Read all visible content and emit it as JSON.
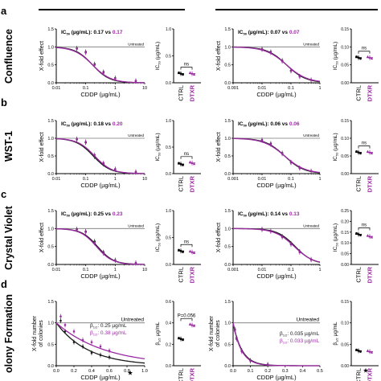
{
  "figure": {
    "row_labels": [
      "Confluence",
      "WST-1",
      "Crystal Violet",
      "olony Formation"
    ],
    "panel_letters": [
      "a",
      "b",
      "c",
      "d"
    ],
    "colors": {
      "ctrl": "#1a1a1a",
      "dtxr": "#9b2aa3",
      "ref_line": "#777777",
      "axis": "#000000"
    },
    "icons": [
      "star-icon",
      "star-icon"
    ]
  },
  "chart_data": [
    {
      "type": "line",
      "id": "a-left",
      "row": "a",
      "xlabel": "CDDP (µg/mL)",
      "ylabel": "X-fold effect",
      "xscale": "log",
      "xlim": [
        0.01,
        10
      ],
      "ylim": [
        0,
        1.5
      ],
      "xticks": [
        "0.01",
        "0.1",
        "1",
        "10"
      ],
      "yticks": [
        "0.0",
        "0.5",
        "1.0",
        "1.5"
      ],
      "ref_label": "Untreated",
      "ref_y": 1.0,
      "ic_text": {
        "prefix": "IC",
        "sub": "50",
        "rest": " (µg/mL): 0.17 vs ",
        "b": "0.17"
      },
      "series": [
        {
          "key": "ctrl",
          "ic50": 0.17,
          "hill": 1.5,
          "points": [
            [
              0.05,
              0.96
            ],
            [
              0.1,
              0.86
            ],
            [
              0.2,
              0.52
            ],
            [
              0.4,
              0.3
            ],
            [
              1,
              0.13
            ],
            [
              5,
              0.05
            ]
          ]
        },
        {
          "key": "dtxr",
          "ic50": 0.17,
          "hill": 1.4,
          "points": [
            [
              0.05,
              0.95
            ],
            [
              0.1,
              0.84
            ],
            [
              0.2,
              0.5
            ],
            [
              0.4,
              0.28
            ],
            [
              1,
              0.12
            ],
            [
              5,
              0.05
            ]
          ]
        }
      ]
    },
    {
      "type": "scatter",
      "id": "a-left-ic",
      "row": "a",
      "ylabel_pre": "IC",
      "ylabel_sub": "50",
      "ylabel_post": " (µg/mL)",
      "ylim": [
        0,
        1
      ],
      "yticks": [
        "0.0",
        "0.5",
        "1.0"
      ],
      "categories": [
        "CTRL",
        "DTXR"
      ],
      "values": [
        0.17,
        0.17
      ],
      "sig": "ns"
    },
    {
      "type": "line",
      "id": "a-right",
      "row": "a",
      "xlabel": "CDDP (µg/mL)",
      "ylabel": "X-fold effect",
      "xscale": "log",
      "xlim": [
        0.001,
        1
      ],
      "ylim": [
        0,
        1.5
      ],
      "xticks": [
        "0.001",
        "0.01",
        "0.1",
        "1"
      ],
      "yticks": [
        "0.0",
        "0.5",
        "1.0",
        "1.5"
      ],
      "ref_label": "Untreated",
      "ref_y": 1.0,
      "ic_text": {
        "prefix": "IC",
        "sub": "50",
        "rest": " (µg/mL): 0.07 vs ",
        "b": "0.07"
      },
      "series": [
        {
          "key": "ctrl",
          "ic50": 0.07,
          "hill": 1.3,
          "points": [
            [
              0.01,
              0.94
            ],
            [
              0.02,
              0.86
            ],
            [
              0.05,
              0.62
            ],
            [
              0.1,
              0.34
            ],
            [
              0.2,
              0.18
            ],
            [
              0.5,
              0.08
            ]
          ]
        },
        {
          "key": "dtxr",
          "ic50": 0.07,
          "hill": 1.2,
          "points": [
            [
              0.01,
              0.93
            ],
            [
              0.02,
              0.84
            ],
            [
              0.05,
              0.6
            ],
            [
              0.1,
              0.33
            ],
            [
              0.2,
              0.17
            ],
            [
              0.5,
              0.08
            ]
          ]
        }
      ]
    },
    {
      "type": "scatter",
      "id": "a-right-ic",
      "row": "a",
      "ylabel_pre": "IC",
      "ylabel_sub": "50",
      "ylabel_post": " (µg/mL)",
      "ylim": [
        0,
        0.15
      ],
      "yticks": [
        "0.00",
        "0.05",
        "0.10",
        "0.15"
      ],
      "categories": [
        "CTRL",
        "DTXR"
      ],
      "values": [
        0.07,
        0.07
      ],
      "sig": "ns"
    },
    {
      "type": "line",
      "id": "b-left",
      "row": "b",
      "xlabel": "CDDP (µg/mL)",
      "ylabel": "X-fold effect",
      "xscale": "log",
      "xlim": [
        0.01,
        10
      ],
      "ylim": [
        0,
        1.5
      ],
      "xticks": [
        "0.01",
        "0.1",
        "1",
        "10"
      ],
      "yticks": [
        "0.0",
        "0.5",
        "1.0",
        "1.5"
      ],
      "ref_label": "Untreated",
      "ref_y": 1.0,
      "ic_text": {
        "prefix": "IC",
        "sub": "50",
        "rest": " (µg/mL): 0.18 vs ",
        "b": "0.20"
      },
      "series": [
        {
          "key": "ctrl",
          "ic50": 0.18,
          "hill": 1.5,
          "points": [
            [
              0.05,
              0.97
            ],
            [
              0.1,
              0.88
            ],
            [
              0.2,
              0.48
            ],
            [
              0.4,
              0.27
            ],
            [
              1,
              0.12
            ],
            [
              5,
              0.04
            ]
          ]
        },
        {
          "key": "dtxr",
          "ic50": 0.2,
          "hill": 1.5,
          "points": [
            [
              0.05,
              0.98
            ],
            [
              0.1,
              0.9
            ],
            [
              0.2,
              0.53
            ],
            [
              0.4,
              0.3
            ],
            [
              1,
              0.13
            ],
            [
              5,
              0.05
            ]
          ]
        }
      ]
    },
    {
      "type": "scatter",
      "id": "b-left-ic",
      "row": "b",
      "ylabel_pre": "IC",
      "ylabel_sub": "50",
      "ylabel_post": " (µg/mL)",
      "ylim": [
        0,
        1
      ],
      "yticks": [
        "0.0",
        "0.5",
        "1.0"
      ],
      "categories": [
        "CTRL",
        "DTXR"
      ],
      "values": [
        0.18,
        0.2
      ],
      "sig": "ns"
    },
    {
      "type": "line",
      "id": "b-right",
      "row": "b",
      "xlabel": "CDDP (µg/mL)",
      "ylabel": "X-fold effect",
      "xscale": "log",
      "xlim": [
        0.001,
        1
      ],
      "ylim": [
        0,
        1.5
      ],
      "xticks": [
        "0.001",
        "0.01",
        "0.1",
        "1"
      ],
      "yticks": [
        "0.0",
        "0.5",
        "1.0",
        "1.5"
      ],
      "ref_label": "Untreated",
      "ref_y": 1.0,
      "ic_text": {
        "prefix": "IC",
        "sub": "50",
        "rest": " (µg/mL): 0.06 vs ",
        "b": "0.06"
      },
      "series": [
        {
          "key": "ctrl",
          "ic50": 0.06,
          "hill": 1.3,
          "points": [
            [
              0.01,
              0.95
            ],
            [
              0.02,
              0.85
            ],
            [
              0.05,
              0.58
            ],
            [
              0.1,
              0.32
            ],
            [
              0.2,
              0.16
            ],
            [
              0.5,
              0.07
            ]
          ]
        },
        {
          "key": "dtxr",
          "ic50": 0.06,
          "hill": 1.2,
          "points": [
            [
              0.01,
              0.94
            ],
            [
              0.02,
              0.83
            ],
            [
              0.05,
              0.56
            ],
            [
              0.1,
              0.31
            ],
            [
              0.2,
              0.15
            ],
            [
              0.5,
              0.07
            ]
          ]
        }
      ]
    },
    {
      "type": "scatter",
      "id": "b-right-ic",
      "row": "b",
      "ylabel_pre": "IC",
      "ylabel_sub": "50",
      "ylabel_post": " (µg/mL)",
      "ylim": [
        0,
        0.15
      ],
      "yticks": [
        "0.00",
        "0.05",
        "0.10",
        "0.15"
      ],
      "categories": [
        "CTRL",
        "DTXR"
      ],
      "values": [
        0.06,
        0.06
      ],
      "sig": "ns"
    },
    {
      "type": "line",
      "id": "c-left",
      "row": "c",
      "xlabel": "CDDP (µg/mL)",
      "ylabel": "X-fold effect",
      "xscale": "log",
      "xlim": [
        0.01,
        10
      ],
      "ylim": [
        0,
        1.5
      ],
      "xticks": [
        "0.01",
        "0.1",
        "1",
        "10"
      ],
      "yticks": [
        "0.0",
        "0.5",
        "1.0",
        "1.5"
      ],
      "ref_label": "Untreated",
      "ref_y": 1.0,
      "ic_text": {
        "prefix": "IC",
        "sub": "50",
        "rest": " (µg/mL): 0.25 vs ",
        "b": "0.23"
      },
      "series": [
        {
          "key": "ctrl",
          "ic50": 0.25,
          "hill": 1.6,
          "points": [
            [
              0.05,
              0.98
            ],
            [
              0.1,
              0.92
            ],
            [
              0.2,
              0.64
            ],
            [
              0.4,
              0.34
            ],
            [
              1,
              0.12
            ],
            [
              5,
              0.04
            ]
          ]
        },
        {
          "key": "dtxr",
          "ic50": 0.23,
          "hill": 1.6,
          "points": [
            [
              0.05,
              0.97
            ],
            [
              0.1,
              0.9
            ],
            [
              0.2,
              0.6
            ],
            [
              0.4,
              0.31
            ],
            [
              1,
              0.11
            ],
            [
              5,
              0.04
            ]
          ]
        }
      ]
    },
    {
      "type": "scatter",
      "id": "c-left-ic",
      "row": "c",
      "ylabel_pre": "IC",
      "ylabel_sub": "50",
      "ylabel_post": " (µg/mL)",
      "ylim": [
        0,
        1
      ],
      "yticks": [
        "0.0",
        "0.5",
        "1.0"
      ],
      "categories": [
        "CTRL",
        "DTXR"
      ],
      "values": [
        0.25,
        0.23
      ],
      "sig": "ns"
    },
    {
      "type": "line",
      "id": "c-right",
      "row": "c",
      "xlabel": "CDDP (µg/mL)",
      "ylabel": "X-fold effect",
      "xscale": "log",
      "xlim": [
        0.001,
        1
      ],
      "ylim": [
        0,
        1.5
      ],
      "xticks": [
        "0.001",
        "0.01",
        "0.1",
        "1"
      ],
      "yticks": [
        "0.0",
        "0.5",
        "1.0",
        "1.5"
      ],
      "ref_label": "Untreated",
      "ref_y": 1.0,
      "ic_text": {
        "prefix": "IC",
        "sub": "50",
        "rest": " (µg/mL): 0.14 vs ",
        "b": "0.13"
      },
      "series": [
        {
          "key": "ctrl",
          "ic50": 0.14,
          "hill": 1.4,
          "points": [
            [
              0.01,
              0.98
            ],
            [
              0.02,
              0.93
            ],
            [
              0.05,
              0.78
            ],
            [
              0.1,
              0.58
            ],
            [
              0.2,
              0.36
            ],
            [
              0.5,
              0.14
            ]
          ]
        },
        {
          "key": "dtxr",
          "ic50": 0.13,
          "hill": 1.3,
          "points": [
            [
              0.01,
              0.97
            ],
            [
              0.02,
              0.92
            ],
            [
              0.05,
              0.76
            ],
            [
              0.1,
              0.56
            ],
            [
              0.2,
              0.34
            ],
            [
              0.5,
              0.13
            ]
          ]
        }
      ]
    },
    {
      "type": "scatter",
      "id": "c-right-ic",
      "row": "c",
      "ylabel_pre": "IC",
      "ylabel_sub": "50",
      "ylabel_post": " (µg/mL)",
      "ylim": [
        0,
        0.25
      ],
      "yticks": [
        "0.00",
        "0.05",
        "0.10",
        "0.15",
        "0.20",
        "0.25"
      ],
      "categories": [
        "CTRL",
        "DTXR"
      ],
      "values": [
        0.14,
        0.13
      ],
      "sig": "ns"
    },
    {
      "type": "line",
      "id": "d-left",
      "row": "d",
      "xscale": "linear",
      "xlabel": "CDDP (µg/mL)",
      "ylabel_lines": [
        "X-fold number",
        "of colonies"
      ],
      "xlim": [
        0,
        1
      ],
      "ylim": [
        0,
        1.5
      ],
      "xticks": [
        "0.0",
        "0.2",
        "0.4",
        "0.6",
        "0.8",
        "1.0"
      ],
      "yticks": [
        "0.0",
        "0.5",
        "1.0",
        "1.5"
      ],
      "ref_label": "Untreated",
      "ref_y": 1.0,
      "beta_text": [
        {
          "key": "ctrl",
          "pre": "β",
          "sub": "1/2",
          "rest": ": 0.25 µg/mL"
        },
        {
          "key": "dtxr",
          "pre": "β",
          "sub": "1/2",
          "rest": ": 0.38 µg/mL"
        }
      ],
      "series": [
        {
          "key": "ctrl",
          "half": 0.25,
          "points": [
            [
              0.05,
              1.05
            ],
            [
              0.1,
              0.8
            ],
            [
              0.2,
              0.55
            ],
            [
              0.3,
              0.45
            ],
            [
              0.4,
              0.3
            ],
            [
              0.5,
              0.25
            ],
            [
              0.6,
              0.2
            ]
          ]
        },
        {
          "key": "dtxr",
          "half": 0.38,
          "points": [
            [
              0.05,
              1.15
            ],
            [
              0.1,
              0.95
            ],
            [
              0.2,
              0.8
            ],
            [
              0.3,
              0.6
            ],
            [
              0.4,
              0.55
            ],
            [
              0.5,
              0.45
            ],
            [
              0.6,
              0.35
            ]
          ]
        }
      ]
    },
    {
      "type": "scatter",
      "id": "d-left-ic",
      "row": "d",
      "ylabel_pre": "β",
      "ylabel_sub": "1/2",
      "ylabel_post": " µg/mL",
      "ylim": [
        0,
        0.6
      ],
      "yticks": [
        "0.0",
        "0.2",
        "0.4",
        "0.6"
      ],
      "categories": [
        "CTRL",
        "DTXR"
      ],
      "values": [
        0.25,
        0.38
      ],
      "sig": "P=0.056"
    },
    {
      "type": "line",
      "id": "d-right",
      "row": "d",
      "xscale": "linear",
      "xlabel": "CDDP (µg/mL)",
      "ylabel_lines": [
        "X-fold number",
        "of colonies"
      ],
      "xlim": [
        0,
        0.5
      ],
      "ylim": [
        0,
        1.5
      ],
      "xticks": [
        "0.0",
        "0.1",
        "0.2",
        "0.3",
        "0.4",
        "0.5"
      ],
      "yticks": [
        "0.0",
        "0.5",
        "1.0",
        "1.5"
      ],
      "ref_label": "Untreated",
      "ref_y": 1.0,
      "beta_text": [
        {
          "key": "ctrl",
          "pre": "β",
          "sub": "1/2",
          "rest": ": 0.035 µg/mL"
        },
        {
          "key": "dtxr",
          "pre": "β",
          "sub": "1/2",
          "rest": ": 0.033 µg/mL"
        }
      ],
      "series": [
        {
          "key": "ctrl",
          "half": 0.035,
          "points": [
            [
              0.01,
              0.85
            ],
            [
              0.02,
              0.65
            ],
            [
              0.05,
              0.35
            ],
            [
              0.1,
              0.12
            ],
            [
              0.2,
              0.03
            ]
          ]
        },
        {
          "key": "dtxr",
          "half": 0.033,
          "points": [
            [
              0.01,
              0.82
            ],
            [
              0.02,
              0.62
            ],
            [
              0.05,
              0.33
            ],
            [
              0.1,
              0.11
            ],
            [
              0.2,
              0.03
            ]
          ]
        }
      ]
    },
    {
      "type": "scatter",
      "id": "d-right-ic",
      "row": "d",
      "ylabel_pre": "β",
      "ylabel_sub": "1/2",
      "ylabel_post": " µg/mL",
      "ylim": [
        0,
        0.15
      ],
      "yticks": [
        "0.00",
        "0.05",
        "0.10",
        "0.15"
      ],
      "categories": [
        "CTRL",
        "DTXR"
      ],
      "values": [
        0.035,
        0.033
      ],
      "sig": ""
    }
  ]
}
